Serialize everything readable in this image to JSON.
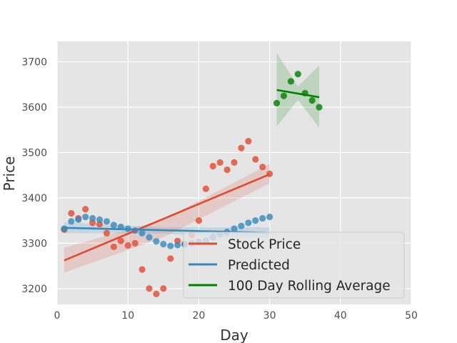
{
  "chart_data": {
    "type": "scatter",
    "xlabel": "Day",
    "ylabel": "Price",
    "xlim": [
      0,
      50
    ],
    "ylim": [
      3165,
      3745
    ],
    "xticks": [
      0,
      10,
      20,
      30,
      40,
      50
    ],
    "yticks": [
      3200,
      3300,
      3400,
      3500,
      3600,
      3700
    ],
    "grid": true,
    "legend_position": "bottom-right",
    "series": [
      {
        "name": "Stock Price",
        "color": "#e24a33",
        "x": [
          1,
          2,
          3,
          4,
          5,
          6,
          7,
          8,
          9,
          10,
          11,
          12,
          13,
          14,
          15,
          16,
          17,
          18,
          19,
          20,
          21,
          22,
          23,
          24,
          25,
          26,
          27,
          28,
          29,
          30
        ],
        "y": [
          3330,
          3366,
          3355,
          3375,
          3345,
          3342,
          3322,
          3292,
          3305,
          3295,
          3300,
          3242,
          3200,
          3188,
          3200,
          3266,
          3305,
          3298,
          3318,
          3350,
          3420,
          3470,
          3478,
          3462,
          3478,
          3510,
          3525,
          3485,
          3468,
          3453
        ],
        "fit": {
          "x": [
            1,
            30
          ],
          "y": [
            3262,
            3452
          ]
        },
        "ci_band": {
          "x": [
            1,
            15,
            30
          ],
          "lower": [
            3235,
            3313,
            3432
          ],
          "upper": [
            3290,
            3352,
            3475
          ]
        }
      },
      {
        "name": "Predicted",
        "color": "#348abd",
        "x": [
          1,
          2,
          3,
          4,
          5,
          6,
          7,
          8,
          9,
          10,
          11,
          12,
          13,
          14,
          15,
          16,
          17,
          18,
          19,
          20,
          21,
          22,
          23,
          24,
          25,
          26,
          27,
          28,
          29,
          30
        ],
        "y": [
          3332,
          3348,
          3352,
          3358,
          3355,
          3352,
          3348,
          3340,
          3336,
          3332,
          3328,
          3322,
          3313,
          3304,
          3298,
          3294,
          3296,
          3298,
          3300,
          3303,
          3306,
          3313,
          3320,
          3325,
          3332,
          3338,
          3345,
          3350,
          3355,
          3358
        ],
        "fit": {
          "x": [
            1,
            30
          ],
          "y": [
            3334,
            3323
          ]
        },
        "ci_band": {
          "x": [
            1,
            15,
            30
          ],
          "lower": [
            3322,
            3321,
            3311
          ],
          "upper": [
            3346,
            3335,
            3335
          ]
        }
      },
      {
        "name": "100 Day Rolling Average",
        "color": "#008000",
        "x": [
          31,
          32,
          33,
          34,
          35,
          36,
          37
        ],
        "y": [
          3609,
          3625,
          3657,
          3673,
          3631,
          3615,
          3600
        ],
        "fit": {
          "x": [
            31,
            37
          ],
          "y": [
            3638,
            3622
          ]
        },
        "ci_band": {
          "x": [
            31,
            34,
            37
          ],
          "lower": [
            3557,
            3616,
            3555
          ],
          "upper": [
            3720,
            3646,
            3692
          ]
        }
      }
    ]
  }
}
